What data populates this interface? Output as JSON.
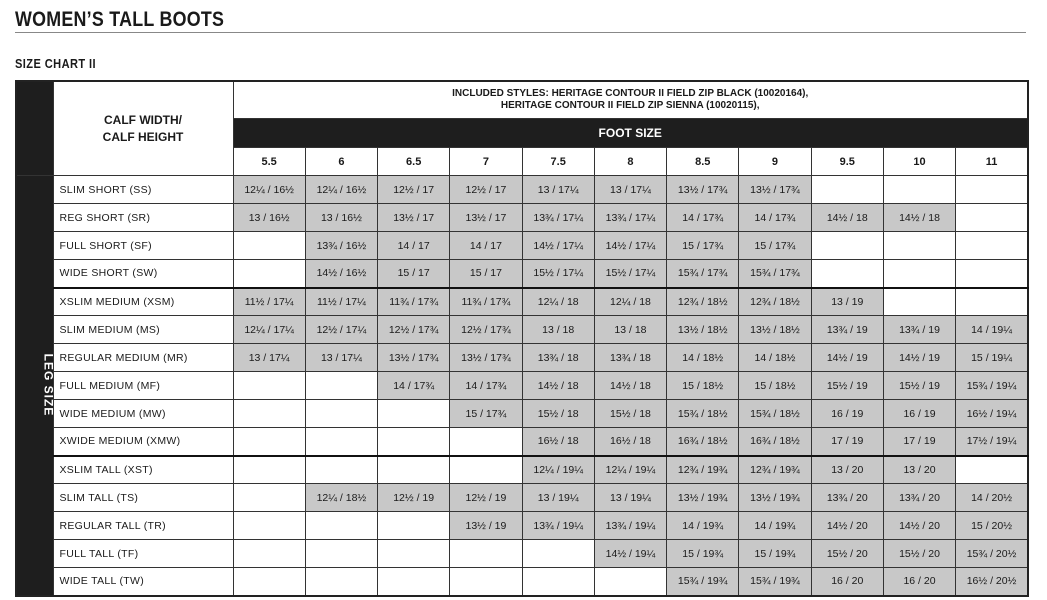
{
  "header": {
    "title": "WOMEN’S TALL BOOTS",
    "subtitle": "SIZE CHART II"
  },
  "table": {
    "styles_note": [
      "INCLUDED STYLES: HERITAGE CONTOUR II FIELD ZIP BLACK (10020164),",
      "HERITAGE CONTOUR II FIELD ZIP SIENNA (10020115),"
    ],
    "calf_header": [
      "CALF WIDTH/",
      "CALF HEIGHT"
    ],
    "foot_size_label": "FOOT SIZE",
    "leg_size_label": "LEG SIZE",
    "sizes": [
      "5.5",
      "6",
      "6.5",
      "7",
      "7.5",
      "8",
      "8.5",
      "9",
      "9.5",
      "10",
      "11"
    ],
    "groups": [
      4,
      6,
      5
    ],
    "rows": [
      {
        "label": "SLIM SHORT (SS)",
        "cells": [
          "12¼ / 16½",
          "12¼ / 16½",
          "12½ / 17",
          "12½ / 17",
          "13 / 17¼",
          "13 / 17¼",
          "13½ / 17¾",
          "13½ / 17¾",
          null,
          null,
          null
        ]
      },
      {
        "label": "REG SHORT (SR)",
        "cells": [
          "13 / 16½",
          "13 / 16½",
          "13½ / 17",
          "13½ / 17",
          "13¾ / 17¼",
          "13¾ / 17¼",
          "14 / 17¾",
          "14 / 17¾",
          "14½ / 18",
          "14½ / 18",
          null
        ]
      },
      {
        "label": "FULL SHORT (SF)",
        "cells": [
          null,
          "13¾ / 16½",
          "14 / 17",
          "14 / 17",
          "14½ / 17¼",
          "14½ / 17¼",
          "15 / 17¾",
          "15 / 17¾",
          null,
          null,
          null
        ]
      },
      {
        "label": "WIDE SHORT (SW)",
        "cells": [
          null,
          "14½ / 16½",
          "15 / 17",
          "15 / 17",
          "15½ / 17¼",
          "15½ / 17¼",
          "15¾ / 17¾",
          "15¾ / 17¾",
          null,
          null,
          null
        ]
      },
      {
        "label": "XSLIM MEDIUM (XSM)",
        "cells": [
          "11½ / 17¼",
          "11½ / 17¼",
          "11¾ / 17¾",
          "11¾ / 17¾",
          "12¼ / 18",
          "12¼ / 18",
          "12¾ / 18½",
          "12¾ / 18½",
          "13 / 19",
          null,
          null
        ]
      },
      {
        "label": "SLIM MEDIUM (MS)",
        "cells": [
          "12¼ / 17¼",
          "12½ / 17¼",
          "12½ / 17¾",
          "12½ / 17¾",
          "13 / 18",
          "13 / 18",
          "13½ / 18½",
          "13½ / 18½",
          "13¾ / 19",
          "13¾ / 19",
          "14 / 19¼"
        ]
      },
      {
        "label": "REGULAR  MEDIUM (MR)",
        "cells": [
          "13 / 17¼",
          "13 / 17¼",
          "13½ / 17¾",
          "13½ / 17¾",
          "13¾ / 18",
          "13¾ / 18",
          "14 / 18½",
          "14 / 18½",
          "14½ / 19",
          "14½ / 19",
          "15 / 19¼"
        ]
      },
      {
        "label": "FULL MEDIUM (MF)",
        "cells": [
          null,
          null,
          "14 / 17¾",
          "14 / 17¾",
          "14½ / 18",
          "14½ / 18",
          "15 / 18½",
          "15 / 18½",
          "15½ / 19",
          "15½ / 19",
          "15¾ / 19¼"
        ]
      },
      {
        "label": "WIDE MEDIUM (MW)",
        "cells": [
          null,
          null,
          null,
          "15 / 17¾",
          "15½ / 18",
          "15½ / 18",
          "15¾ / 18½",
          "15¾ / 18½",
          "16 / 19",
          "16 / 19",
          "16½ / 19¼"
        ]
      },
      {
        "label": "XWIDE MEDIUM (XMW)",
        "cells": [
          null,
          null,
          null,
          null,
          "16½ / 18",
          "16½ / 18",
          "16¾ / 18½",
          "16¾ / 18½",
          "17 / 19",
          "17 / 19",
          "17½ / 19¼"
        ]
      },
      {
        "label": "XSLIM TALL (XST)",
        "cells": [
          null,
          null,
          null,
          null,
          "12¼ / 19¼",
          "12¼ / 19¼",
          "12¾ / 19¾",
          "12¾ / 19¾",
          "13 / 20",
          "13 / 20",
          null
        ]
      },
      {
        "label": "SLIM TALL (TS)",
        "cells": [
          null,
          "12¼ / 18½",
          "12½ / 19",
          "12½ / 19",
          "13 / 19¼",
          "13 / 19¼",
          "13½ / 19¾",
          "13½ / 19¾",
          "13¾ / 20",
          "13¾ / 20",
          "14 / 20½"
        ]
      },
      {
        "label": "REGULAR TALL (TR)",
        "cells": [
          null,
          null,
          null,
          "13½ / 19",
          "13¾ / 19¼",
          "13¾ / 19¼",
          "14 / 19¾",
          "14 / 19¾",
          "14½ / 20",
          "14½ / 20",
          "15 / 20½"
        ]
      },
      {
        "label": "FULL TALL (TF)",
        "cells": [
          null,
          null,
          null,
          null,
          null,
          "14½ / 19¼",
          "15 / 19¾",
          "15 / 19¾",
          "15½ / 20",
          "15½ / 20",
          "15¾ / 20½"
        ]
      },
      {
        "label": "WIDE TALL (TW)",
        "cells": [
          null,
          null,
          null,
          null,
          null,
          null,
          "15¾ / 19¾",
          "15¾ / 19¾",
          "16 / 20",
          "16 / 20",
          "16½ / 20½"
        ]
      }
    ]
  }
}
